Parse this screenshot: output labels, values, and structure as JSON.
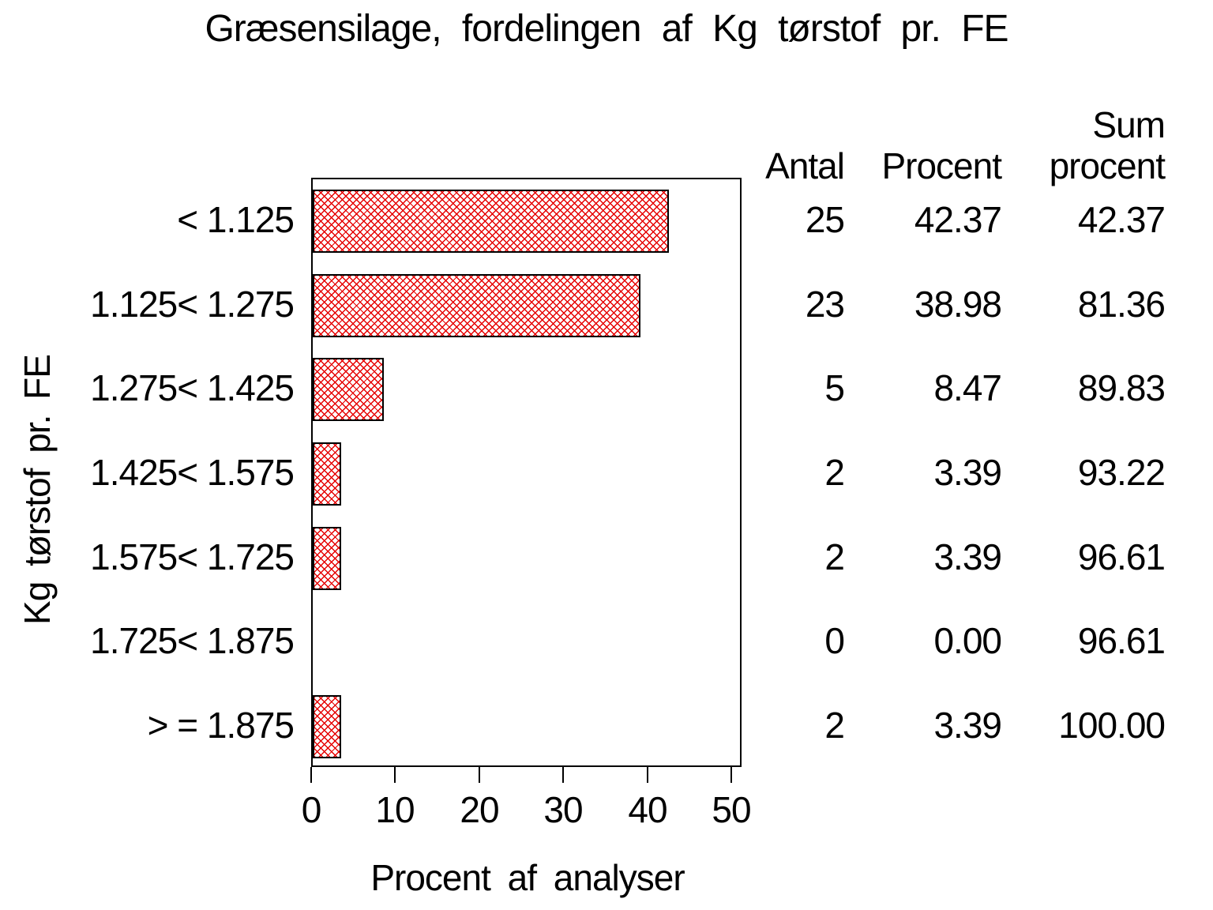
{
  "title": "Græsensilage, fordelingen af Kg tørstof pr. FE",
  "x_axis": {
    "label": "Procent af analyser",
    "ticks": [
      "0",
      "10",
      "20",
      "30",
      "40",
      "50"
    ]
  },
  "y_axis": {
    "label": "Kg tørstof pr. FE"
  },
  "table_headers": {
    "antal": "Antal",
    "procent": "Procent",
    "sum_top": "Sum",
    "sum_bottom": "procent"
  },
  "rows": [
    {
      "label": "< 1.125",
      "antal": "25",
      "procent": "42.37",
      "sum_procent": "42.37"
    },
    {
      "label": "1.125< 1.275",
      "antal": "23",
      "procent": "38.98",
      "sum_procent": "81.36"
    },
    {
      "label": "1.275< 1.425",
      "antal": "5",
      "procent": "8.47",
      "sum_procent": "89.83"
    },
    {
      "label": "1.425< 1.575",
      "antal": "2",
      "procent": "3.39",
      "sum_procent": "93.22"
    },
    {
      "label": "1.575< 1.725",
      "antal": "2",
      "procent": "3.39",
      "sum_procent": "96.61"
    },
    {
      "label": "1.725< 1.875",
      "antal": "0",
      "procent": "0.00",
      "sum_procent": "96.61"
    },
    {
      "label": "> = 1.875",
      "antal": "2",
      "procent": "3.39",
      "sum_procent": "100.00"
    }
  ],
  "colors": {
    "hatch": "#e60000",
    "frame": "#000000",
    "text": "#000000",
    "background": "#ffffff"
  },
  "chart_data": {
    "type": "bar",
    "orientation": "horizontal",
    "title": "Græsensilage, fordelingen af Kg tørstof pr. FE",
    "xlabel": "Procent af analyser",
    "ylabel": "Kg tørstof pr. FE",
    "xlim": [
      0,
      50
    ],
    "x_ticks": [
      0,
      10,
      20,
      30,
      40,
      50
    ],
    "grid": false,
    "legend": "none",
    "bar_style": "red diagonal crosshatch fill on white with black outline",
    "categories": [
      "< 1.125",
      "1.125< 1.275",
      "1.275< 1.425",
      "1.425< 1.575",
      "1.575< 1.725",
      "1.725< 1.875",
      "> = 1.875"
    ],
    "bar_series": "Procent",
    "series": [
      {
        "name": "Antal",
        "values": [
          25,
          23,
          5,
          2,
          2,
          0,
          2
        ]
      },
      {
        "name": "Procent",
        "values": [
          42.37,
          38.98,
          8.47,
          3.39,
          3.39,
          0.0,
          3.39
        ]
      },
      {
        "name": "Sum procent",
        "values": [
          42.37,
          81.36,
          89.83,
          93.22,
          96.61,
          96.61,
          100.0
        ]
      }
    ]
  }
}
